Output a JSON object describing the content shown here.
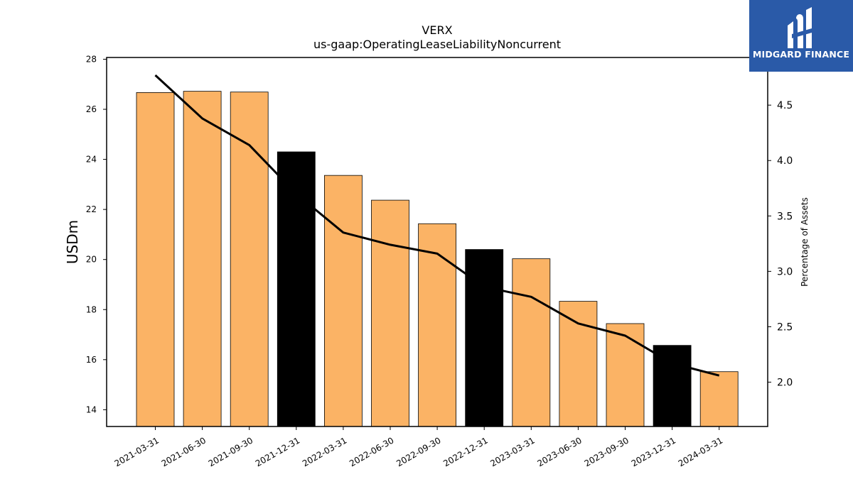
{
  "chart_data": {
    "type": "bar",
    "title": "VERX",
    "subtitle": "us-gaap:OperatingLeaseLiabilityNoncurrent",
    "ylabel": "USDm",
    "y2label": "Percentage of Assets",
    "categories": [
      "2021-03-31",
      "2021-06-30",
      "2021-09-30",
      "2021-12-31",
      "2022-03-31",
      "2022-06-30",
      "2022-09-30",
      "2022-12-31",
      "2023-03-31",
      "2023-06-30",
      "2023-09-30",
      "2023-12-31",
      "2024-03-31"
    ],
    "series": [
      {
        "type": "bar",
        "axis": "left",
        "values": [
          26.67,
          26.72,
          26.69,
          24.3,
          23.36,
          22.37,
          21.43,
          20.4,
          20.03,
          18.33,
          17.44,
          16.57,
          15.52
        ],
        "colors": [
          "#fbb365",
          "#fbb365",
          "#fbb365",
          "#000000",
          "#fbb365",
          "#fbb365",
          "#fbb365",
          "#000000",
          "#fbb365",
          "#fbb365",
          "#fbb365",
          "#000000",
          "#fbb365"
        ]
      },
      {
        "type": "line",
        "axis": "right",
        "color": "#000000",
        "values": [
          4.77,
          4.38,
          4.14,
          3.7,
          3.35,
          3.24,
          3.16,
          2.86,
          2.77,
          2.53,
          2.42,
          2.17,
          2.06
        ]
      }
    ],
    "ylim": [
      13.33,
      28.07
    ],
    "yticks": [
      14,
      16,
      18,
      20,
      22,
      24,
      26,
      28
    ],
    "y2lim": [
      1.6,
      4.93
    ],
    "y2ticks": [
      "2.0",
      "2.5",
      "3.0",
      "3.5",
      "4.0",
      "4.5"
    ],
    "grid": false,
    "legend": "none"
  },
  "logo": {
    "text": "MIDGARD FINANCE",
    "icon": "midgard-finance-logo-icon"
  }
}
